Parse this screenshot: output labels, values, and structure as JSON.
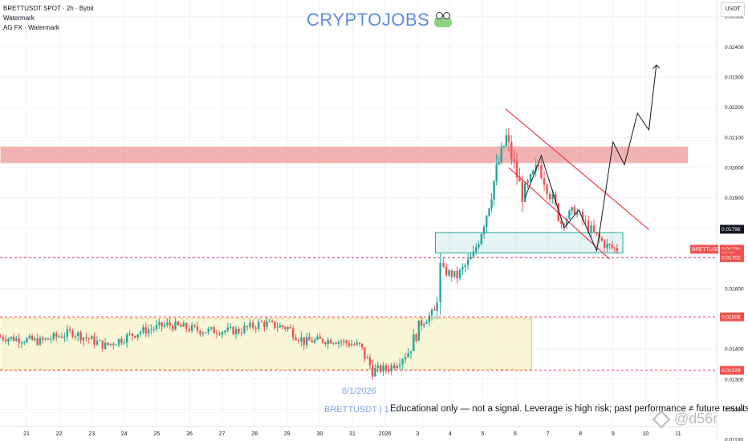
{
  "header": {
    "title": "BRETTUSDT SPOT · 2h · Bybit",
    "line2": "Watermark",
    "line3": "AG FX · Watermark"
  },
  "watermark": {
    "brand": "CRYPTOJOBS",
    "brand_icon": "frog-icon",
    "date": "8/1/2026",
    "symbol": "BRETTUSDT | 120"
  },
  "disclaimer": "Educational only — not a signal. Leverage is high risk; past performance ≠ future results.",
  "corner_mark": "@d56r",
  "currency_button": "USDT",
  "colors": {
    "up": "#26a69a",
    "down": "#ef5350",
    "resistance_zone": "#e57373",
    "support_zone": "#26a69a",
    "range_zone": "#f5f3c8",
    "range_border": "#e8c547",
    "channel": "#f23645",
    "projection": "#131722"
  },
  "chart_data": {
    "type": "candlestick",
    "symbol": "BRETTUSDT",
    "interval": "2h",
    "exchange": "Bybit",
    "ylim": [
      0.01095,
      0.02555
    ],
    "y_ticks": [
      "0.02500",
      "0.02400",
      "0.02300",
      "0.02200",
      "0.02100",
      "0.02000",
      "0.01900",
      "0.01800",
      "0.01700",
      "0.01600",
      "0.01500",
      "0.01400",
      "0.01300",
      "0.01200",
      "0.01100"
    ],
    "x_ticks": [
      "21",
      "22",
      "23",
      "24",
      "25",
      "26",
      "27",
      "28",
      "29",
      "30",
      "31",
      "2026",
      "3",
      "4",
      "5",
      "6",
      "7",
      "8",
      "9",
      "10",
      "11"
    ],
    "x_tick_days": [
      0,
      1,
      2,
      3,
      4,
      5,
      6,
      7,
      8,
      9,
      10,
      11,
      12,
      13,
      14,
      15,
      16,
      17,
      18,
      19,
      20
    ],
    "price_labels": [
      {
        "text": "0.01796",
        "value": 0.01796,
        "style": "dark"
      },
      {
        "text": "BRETTUSDT",
        "value": 0.0173,
        "style": "red-symbol"
      },
      {
        "text": "0.01730",
        "value": 0.0173,
        "style": "red"
      },
      {
        "text": "07:09",
        "value": 0.01714,
        "style": "red-sub"
      },
      {
        "text": "0.01702",
        "value": 0.01702,
        "style": "red"
      },
      {
        "text": "0.01506",
        "value": 0.01506,
        "style": "red"
      },
      {
        "text": "0.01329",
        "value": 0.01329,
        "style": "red"
      }
    ],
    "horizontal_lines": [
      {
        "value": 0.01702,
        "style": "dashed",
        "color": "#f23645"
      },
      {
        "value": 0.01506,
        "style": "dashed",
        "color": "#f23645"
      },
      {
        "value": 0.01329,
        "style": "dashed",
        "color": "#f23645"
      }
    ],
    "zones": [
      {
        "name": "resistance",
        "y_from": 0.02015,
        "y_to": 0.0207,
        "x_from": -0.8,
        "x_to": 20.3
      },
      {
        "name": "support",
        "y_from": 0.01718,
        "y_to": 0.01785,
        "x_from": 12.55,
        "x_to": 18.3
      },
      {
        "name": "range",
        "y_from": 0.01332,
        "y_to": 0.015,
        "x_from": -0.8,
        "x_to": 15.5
      }
    ],
    "channel": {
      "upper": [
        [
          14.7,
          0.02195
        ],
        [
          19.1,
          0.01795
        ]
      ],
      "lower": [
        [
          14.8,
          0.02
        ],
        [
          17.9,
          0.01697
        ]
      ]
    },
    "projection_path": [
      [
        15.3,
        0.019
      ],
      [
        15.8,
        0.0204
      ],
      [
        16.5,
        0.018
      ],
      [
        16.95,
        0.0186
      ],
      [
        17.5,
        0.01725
      ],
      [
        18.0,
        0.02085
      ],
      [
        18.35,
        0.0201
      ],
      [
        18.75,
        0.0218
      ],
      [
        19.1,
        0.02125
      ],
      [
        19.33,
        0.0234
      ]
    ],
    "candle_segments": [
      [
        -0.8,
        0.0144
      ],
      [
        0.5,
        0.01425
      ],
      [
        1.5,
        0.01455
      ],
      [
        2.5,
        0.0141
      ],
      [
        3.5,
        0.01455
      ],
      [
        4.4,
        0.0148
      ],
      [
        5.5,
        0.0146
      ],
      [
        6.6,
        0.0146
      ],
      [
        7.3,
        0.01485
      ],
      [
        8.1,
        0.0147
      ],
      [
        8.6,
        0.01425
      ],
      [
        9.5,
        0.0143
      ],
      [
        10.3,
        0.0141
      ],
      [
        10.7,
        0.0133
      ],
      [
        11.2,
        0.01335
      ],
      [
        11.8,
        0.0139
      ],
      [
        12.2,
        0.0149
      ],
      [
        12.6,
        0.0152
      ],
      [
        12.8,
        0.0166
      ],
      [
        13.3,
        0.0164
      ],
      [
        13.8,
        0.0171
      ],
      [
        14.2,
        0.0185
      ],
      [
        14.5,
        0.0199
      ],
      [
        14.8,
        0.021
      ],
      [
        15.3,
        0.0191
      ],
      [
        15.8,
        0.0201
      ],
      [
        16.5,
        0.0182
      ],
      [
        16.9,
        0.0186
      ],
      [
        17.5,
        0.0178
      ],
      [
        17.9,
        0.0174
      ],
      [
        18.2,
        0.0173
      ]
    ]
  }
}
